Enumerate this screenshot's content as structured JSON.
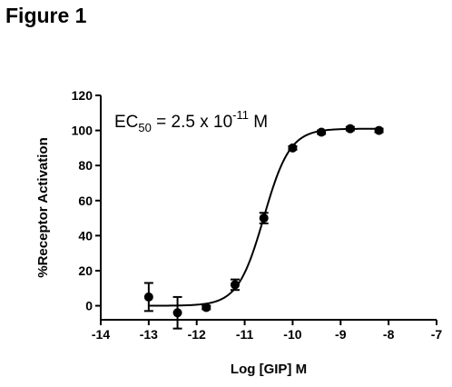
{
  "figure_label": "Figure 1",
  "chart_data": {
    "type": "scatter",
    "title": "",
    "xlabel": "Log [GIP] M",
    "ylabel": "%Receptor Activation",
    "xlim": [
      -14,
      -7
    ],
    "ylim": [
      -8,
      120
    ],
    "xticks": [
      -14,
      -13,
      -12,
      -11,
      -10,
      -9,
      -8,
      -7
    ],
    "yticks": [
      0,
      20,
      40,
      60,
      80,
      100,
      120
    ],
    "grid": false,
    "annotation": {
      "prefix": "EC",
      "subscript": "50",
      "middle": " = 2.5 x 10",
      "superscript": "-11",
      "suffix": " M"
    },
    "series": [
      {
        "x": [
          -13.0,
          -12.4,
          -11.8,
          -11.2,
          -10.6,
          -10.0,
          -9.4,
          -8.8,
          -8.2
        ],
        "y": [
          5,
          -4,
          -1,
          12,
          50,
          90,
          99,
          101,
          100
        ],
        "error": [
          8,
          9,
          1,
          3,
          3,
          1,
          1,
          1,
          1
        ]
      }
    ],
    "fit_curve": {
      "bottom": 0,
      "top": 101,
      "log_ec50": -10.6,
      "hill_slope": 1.6,
      "x_range": [
        -13.0,
        -8.2
      ]
    }
  }
}
